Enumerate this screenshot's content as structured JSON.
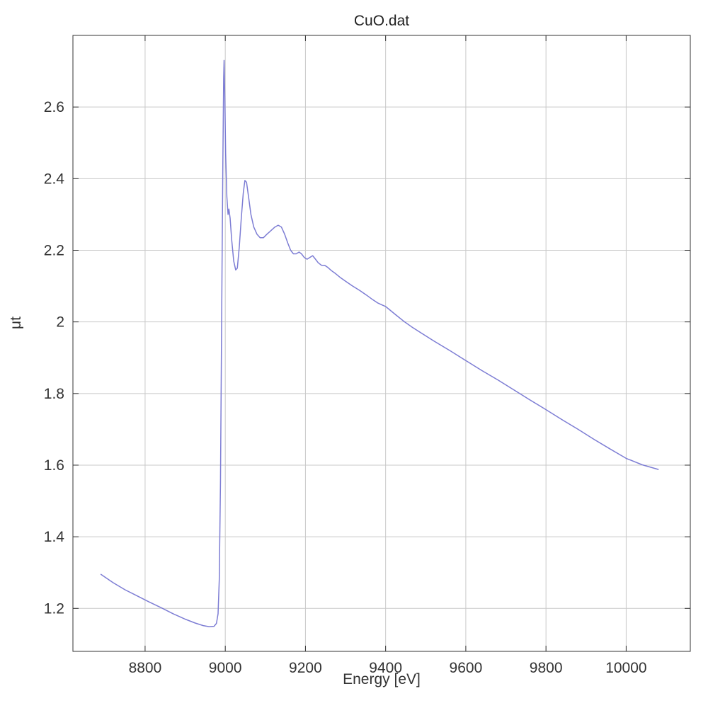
{
  "chart_data": {
    "type": "line",
    "title": "CuO.dat",
    "xlabel": "Energy [eV]",
    "ylabel": "μt",
    "xlim": [
      8620,
      10160
    ],
    "ylim": [
      1.08,
      2.8
    ],
    "xticks": [
      8800,
      9000,
      9200,
      9400,
      9600,
      9800,
      10000
    ],
    "yticks": [
      1.2,
      1.4,
      1.6,
      1.8,
      2,
      2.2,
      2.4,
      2.6
    ],
    "grid": true,
    "legend": "none",
    "colors": {
      "line": "#7d7dd4",
      "grid": "#c9c9c9",
      "border": "#333333",
      "text": "#333333",
      "background": "#ffffff"
    },
    "series": [
      {
        "name": "CuO.dat",
        "points": [
          [
            8690,
            1.295
          ],
          [
            8720,
            1.272
          ],
          [
            8750,
            1.252
          ],
          [
            8780,
            1.235
          ],
          [
            8810,
            1.218
          ],
          [
            8840,
            1.202
          ],
          [
            8870,
            1.185
          ],
          [
            8900,
            1.17
          ],
          [
            8925,
            1.159
          ],
          [
            8945,
            1.152
          ],
          [
            8960,
            1.149
          ],
          [
            8972,
            1.15
          ],
          [
            8978,
            1.158
          ],
          [
            8982,
            1.185
          ],
          [
            8985,
            1.28
          ],
          [
            8988,
            1.55
          ],
          [
            8990,
            1.85
          ],
          [
            8992,
            2.15
          ],
          [
            8994,
            2.45
          ],
          [
            8996,
            2.68
          ],
          [
            8997,
            2.73
          ],
          [
            8999,
            2.62
          ],
          [
            9001,
            2.47
          ],
          [
            9004,
            2.35
          ],
          [
            9007,
            2.3
          ],
          [
            9009,
            2.315
          ],
          [
            9012,
            2.29
          ],
          [
            9016,
            2.23
          ],
          [
            9021,
            2.17
          ],
          [
            9026,
            2.145
          ],
          [
            9030,
            2.15
          ],
          [
            9035,
            2.21
          ],
          [
            9040,
            2.29
          ],
          [
            9045,
            2.36
          ],
          [
            9049,
            2.395
          ],
          [
            9053,
            2.39
          ],
          [
            9058,
            2.35
          ],
          [
            9064,
            2.3
          ],
          [
            9071,
            2.265
          ],
          [
            9079,
            2.245
          ],
          [
            9087,
            2.235
          ],
          [
            9095,
            2.235
          ],
          [
            9104,
            2.245
          ],
          [
            9114,
            2.255
          ],
          [
            9124,
            2.265
          ],
          [
            9132,
            2.27
          ],
          [
            9140,
            2.265
          ],
          [
            9148,
            2.245
          ],
          [
            9156,
            2.22
          ],
          [
            9163,
            2.2
          ],
          [
            9170,
            2.19
          ],
          [
            9177,
            2.19
          ],
          [
            9184,
            2.195
          ],
          [
            9190,
            2.19
          ],
          [
            9197,
            2.18
          ],
          [
            9204,
            2.175
          ],
          [
            9211,
            2.18
          ],
          [
            9218,
            2.185
          ],
          [
            9225,
            2.175
          ],
          [
            9232,
            2.165
          ],
          [
            9240,
            2.158
          ],
          [
            9248,
            2.158
          ],
          [
            9256,
            2.152
          ],
          [
            9265,
            2.143
          ],
          [
            9275,
            2.135
          ],
          [
            9288,
            2.123
          ],
          [
            9302,
            2.112
          ],
          [
            9318,
            2.1
          ],
          [
            9335,
            2.088
          ],
          [
            9352,
            2.075
          ],
          [
            9368,
            2.062
          ],
          [
            9380,
            2.053
          ],
          [
            9390,
            2.048
          ],
          [
            9400,
            2.043
          ],
          [
            9410,
            2.034
          ],
          [
            9425,
            2.02
          ],
          [
            9445,
            2.002
          ],
          [
            9465,
            1.986
          ],
          [
            9490,
            1.968
          ],
          [
            9520,
            1.947
          ],
          [
            9560,
            1.92
          ],
          [
            9600,
            1.892
          ],
          [
            9640,
            1.864
          ],
          [
            9680,
            1.838
          ],
          [
            9720,
            1.81
          ],
          [
            9760,
            1.782
          ],
          [
            9800,
            1.755
          ],
          [
            9840,
            1.727
          ],
          [
            9880,
            1.7
          ],
          [
            9920,
            1.672
          ],
          [
            9960,
            1.645
          ],
          [
            10000,
            1.619
          ],
          [
            10040,
            1.601
          ],
          [
            10080,
            1.588
          ]
        ]
      }
    ]
  }
}
